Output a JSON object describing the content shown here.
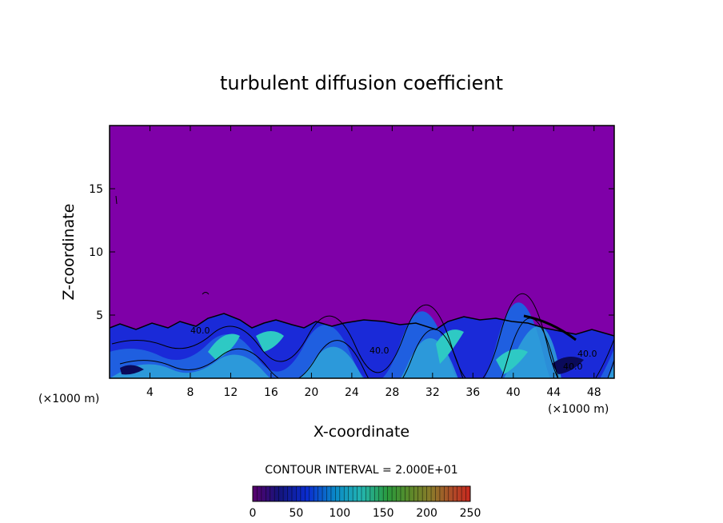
{
  "chart_data": {
    "type": "heatmap",
    "title": "turbulent diffusion coefficient",
    "xlabel": "X-coordinate",
    "ylabel": "Z-coordinate",
    "x_unit_left": "(×1000 m)",
    "x_unit_right": "(×1000 m)",
    "xlim": [
      0,
      50
    ],
    "ylim": [
      0,
      20
    ],
    "x_ticks": [
      4,
      8,
      12,
      16,
      20,
      24,
      28,
      32,
      36,
      40,
      44,
      48
    ],
    "y_ticks": [
      5,
      10,
      15
    ],
    "contour_interval_text": "CONTOUR INTERVAL = 2.000E+01",
    "contour_labels": [
      "40.0",
      "40.0",
      "40.0",
      "40.0"
    ],
    "colorbar": {
      "min": 0,
      "max": 250,
      "ticks": [
        0,
        50,
        100,
        150,
        200,
        250
      ]
    },
    "background_color": "#7f00a8",
    "turbulent_layer_top_approx": 4.5,
    "grid": false
  }
}
